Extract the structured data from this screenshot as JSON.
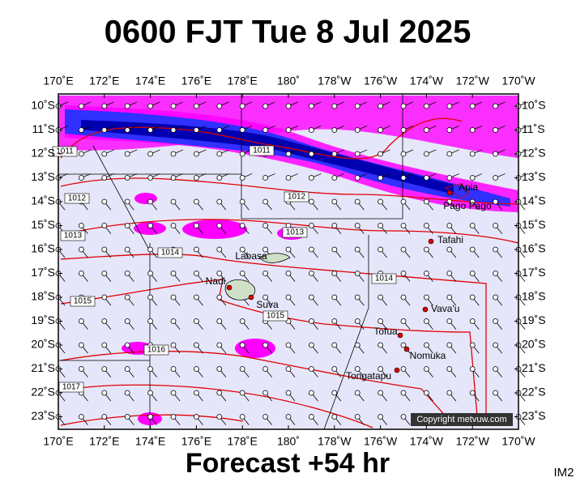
{
  "header": {
    "title": "0600 FJT Tue 8 Jul 2025"
  },
  "map": {
    "lon_labels": [
      "170˚E",
      "172˚E",
      "174˚E",
      "176˚E",
      "178˚E",
      "180˚",
      "178˚W",
      "176˚W",
      "174˚W",
      "172˚W",
      "170˚W"
    ],
    "lat_labels": [
      "10˚S",
      "11˚S",
      "12˚S",
      "13˚S",
      "14˚S",
      "15˚S",
      "16˚S",
      "17˚S",
      "18˚S",
      "19˚S",
      "20˚S",
      "21˚S",
      "22˚S",
      "23˚S"
    ],
    "places": [
      "Apia",
      "Pago Pago",
      "Tafahi",
      "Labasa",
      "Nadi",
      "Suva",
      "Vava'u",
      "Tofua",
      "Nomuka",
      "Tongatapu"
    ],
    "isobar_labels": [
      "1011",
      "1012",
      "1013",
      "1014",
      "1015",
      "1016",
      "1017",
      "1011",
      "1012",
      "1013",
      "1014",
      "1015"
    ],
    "copyright": "Copyright metvuw.com"
  },
  "footer": {
    "caption": "Forecast +54 hr",
    "code": "IM2"
  }
}
